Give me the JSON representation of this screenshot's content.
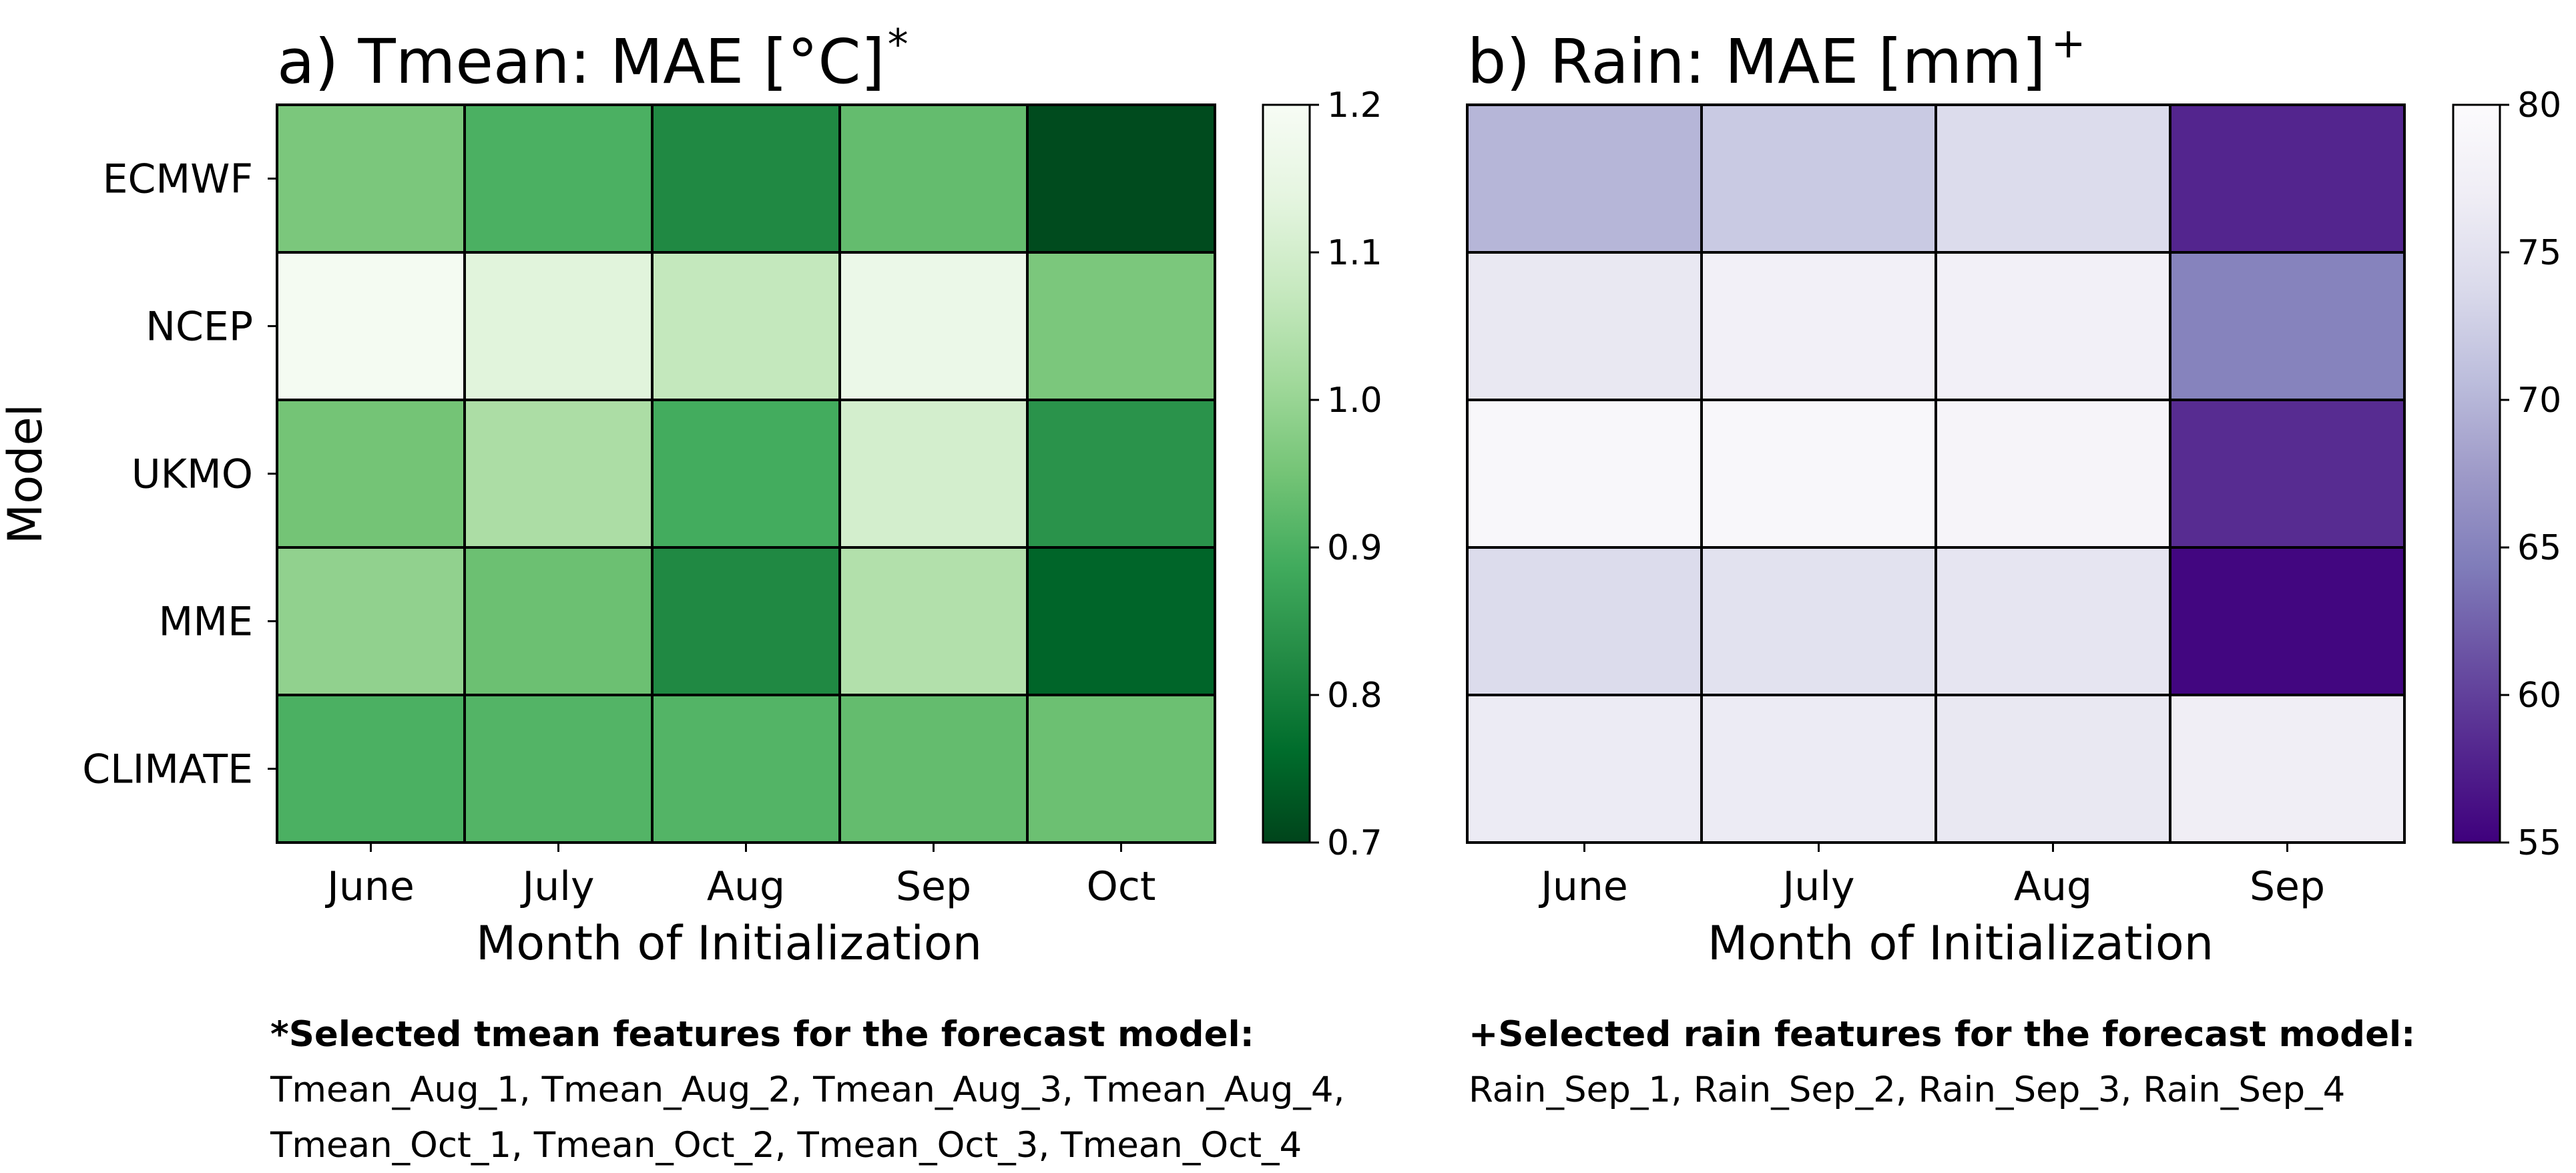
{
  "chart_data": [
    {
      "type": "heatmap",
      "title": "a) Tmean: MAE [°C]",
      "title_marker": "*",
      "xlabel": "Month of Initialization",
      "ylabel": "Model",
      "x": [
        "June",
        "July",
        "Aug",
        "Sep",
        "Oct"
      ],
      "y": [
        "ECMWF",
        "NCEP",
        "UKMO",
        "MME",
        "CLIMATE"
      ],
      "values": [
        [
          0.96,
          0.9,
          0.82,
          0.93,
          0.71
        ],
        [
          1.19,
          1.13,
          1.07,
          1.16,
          0.96
        ],
        [
          0.95,
          1.03,
          0.89,
          1.1,
          0.84
        ],
        [
          0.99,
          0.94,
          0.82,
          1.04,
          0.75
        ],
        [
          0.9,
          0.91,
          0.91,
          0.93,
          0.94
        ]
      ],
      "colormap": "Greens_r",
      "colorbar": {
        "min": 0.7,
        "max": 1.2,
        "ticks": [
          "0.7",
          "0.8",
          "0.9",
          "1.0",
          "1.1",
          "1.2"
        ]
      }
    },
    {
      "type": "heatmap",
      "title": "b) Rain: MAE [mm]",
      "title_marker": "+",
      "xlabel": "Month of Initialization",
      "ylabel": "",
      "x": [
        "June",
        "July",
        "Aug",
        "Sep"
      ],
      "y": [
        "ECMWF",
        "NCEP",
        "UKMO",
        "MME",
        "CLIMATE"
      ],
      "values": [
        [
          70.0,
          72.0,
          74.0,
          58.0
        ],
        [
          76.0,
          77.5,
          77.5,
          65.0
        ],
        [
          79.0,
          79.0,
          78.5,
          58.5
        ],
        [
          74.0,
          75.0,
          75.5,
          55.5
        ],
        [
          76.5,
          76.5,
          76.0,
          77.0
        ]
      ],
      "colormap": "Purples_r",
      "colorbar": {
        "min": 55,
        "max": 80,
        "ticks": [
          "55",
          "60",
          "65",
          "70",
          "75",
          "80"
        ]
      }
    }
  ],
  "footnotes": {
    "tmean": {
      "title": "*Selected tmean features for the forecast model:",
      "line1": "Tmean_Aug_1, Tmean_Aug_2, Tmean_Aug_3, Tmean_Aug_4,",
      "line2": "Tmean_Oct_1, Tmean_Oct_2, Tmean_Oct_3, Tmean_Oct_4"
    },
    "rain": {
      "title": "+Selected rain features for the forecast model:",
      "line1": "Rain_Sep_1, Rain_Sep_2, Rain_Sep_3, Rain_Sep_4"
    }
  }
}
